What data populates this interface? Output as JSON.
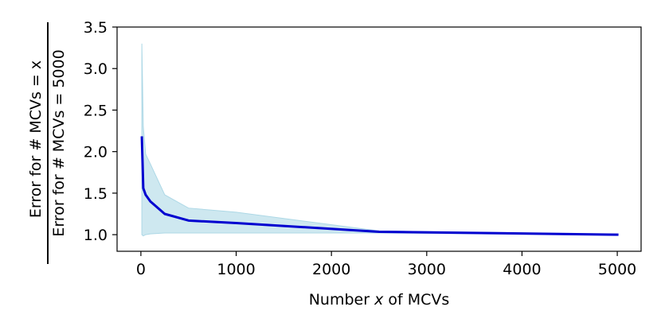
{
  "chart_data": {
    "type": "line",
    "title": "",
    "xlabel": {
      "prefix": "Number ",
      "variable": "x",
      "suffix": " of MCVs"
    },
    "ylabel": {
      "numerator": "Error for # MCVs = x",
      "denominator": "Error for # MCVs = 5000"
    },
    "xlim": [
      -250,
      5250
    ],
    "ylim": [
      0.8,
      3.5
    ],
    "xticks": [
      0,
      1000,
      2000,
      3000,
      4000,
      5000
    ],
    "xtick_labels": [
      "0",
      "1000",
      "2000",
      "3000",
      "4000",
      "5000"
    ],
    "yticks": [
      1.0,
      1.5,
      2.0,
      2.5,
      3.0,
      3.5
    ],
    "ytick_labels": [
      "1.0",
      "1.5",
      "2.0",
      "2.5",
      "3.0",
      "3.5"
    ],
    "grid": false,
    "legend": false,
    "series": [
      {
        "x": [
          10,
          25,
          50,
          100,
          250,
          500,
          1000,
          2500,
          5000
        ],
        "y": [
          2.17,
          1.56,
          1.48,
          1.4,
          1.25,
          1.17,
          1.14,
          1.035,
          1.0
        ],
        "band_upper": [
          3.3,
          2.3,
          1.97,
          1.85,
          1.48,
          1.32,
          1.27,
          1.045,
          1.005
        ],
        "band_lower": [
          1.0,
          0.985,
          1.0,
          1.01,
          1.02,
          1.02,
          1.02,
          1.02,
          0.995
        ],
        "color": "#0000d0",
        "band_color": "#add8e6"
      }
    ]
  }
}
